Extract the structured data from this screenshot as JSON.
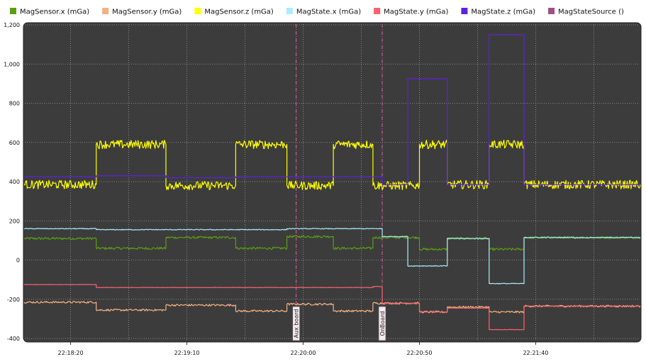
{
  "chart_data": {
    "type": "line",
    "title": "",
    "xlabel": "",
    "ylabel": "",
    "ylim": [
      -400,
      1200
    ],
    "xlim_seconds_of_day": [
      80280,
      80545
    ],
    "x_ticks": [
      {
        "label": "22:18:20",
        "t": 80300
      },
      {
        "label": "22:19:10",
        "t": 80350
      },
      {
        "label": "22:20:00",
        "t": 80400
      },
      {
        "label": "22:20:50",
        "t": 80450
      },
      {
        "label": "22:21:40",
        "t": 80500
      }
    ],
    "y_ticks": [
      {
        "label": "1,200",
        "v": 1200
      },
      {
        "label": "1,000",
        "v": 1000
      },
      {
        "label": "800",
        "v": 800
      },
      {
        "label": "600",
        "v": 600
      },
      {
        "label": "400",
        "v": 400
      },
      {
        "label": "200",
        "v": 200
      },
      {
        "label": "0",
        "v": 0
      },
      {
        "label": "-200",
        "v": -200
      },
      {
        "label": "-400",
        "v": -400
      }
    ],
    "grid": true,
    "legend_placement": "top",
    "annotations": [
      {
        "label": "Aux board",
        "t": 80397
      },
      {
        "label": "OnBoard",
        "t": 80434
      }
    ],
    "series": [
      {
        "name": "MagSensor.x (mGa)",
        "color": "#5a9e12",
        "noise": 6,
        "points": [
          [
            80280,
            110
          ],
          [
            80311,
            110
          ],
          [
            80311,
            60
          ],
          [
            80341,
            60
          ],
          [
            80341,
            115
          ],
          [
            80371,
            115
          ],
          [
            80371,
            60
          ],
          [
            80393,
            60
          ],
          [
            80393,
            120
          ],
          [
            80413,
            120
          ],
          [
            80413,
            60
          ],
          [
            80430,
            60
          ],
          [
            80430,
            115
          ],
          [
            80450,
            115
          ],
          [
            80450,
            55
          ],
          [
            80462,
            55
          ],
          [
            80462,
            110
          ],
          [
            80480,
            110
          ],
          [
            80480,
            55
          ],
          [
            80495,
            55
          ],
          [
            80495,
            115
          ],
          [
            80545,
            115
          ]
        ]
      },
      {
        "name": "MagSensor.y (mGa)",
        "color": "#f4b183",
        "noise": 5,
        "points": [
          [
            80280,
            -215
          ],
          [
            80311,
            -215
          ],
          [
            80311,
            -255
          ],
          [
            80341,
            -255
          ],
          [
            80341,
            -230
          ],
          [
            80371,
            -230
          ],
          [
            80371,
            -260
          ],
          [
            80393,
            -260
          ],
          [
            80393,
            -225
          ],
          [
            80413,
            -225
          ],
          [
            80413,
            -260
          ],
          [
            80430,
            -260
          ],
          [
            80430,
            -220
          ],
          [
            80450,
            -220
          ],
          [
            80450,
            -265
          ],
          [
            80462,
            -265
          ],
          [
            80462,
            -240
          ],
          [
            80480,
            -240
          ],
          [
            80480,
            -265
          ],
          [
            80495,
            -265
          ],
          [
            80495,
            -235
          ],
          [
            80545,
            -235
          ]
        ]
      },
      {
        "name": "MagSensor.z (mGa)",
        "color": "#ffff00",
        "noise": 22,
        "points": [
          [
            80280,
            385
          ],
          [
            80311,
            385
          ],
          [
            80311,
            590
          ],
          [
            80341,
            590
          ],
          [
            80341,
            380
          ],
          [
            80371,
            380
          ],
          [
            80371,
            590
          ],
          [
            80393,
            590
          ],
          [
            80393,
            380
          ],
          [
            80413,
            380
          ],
          [
            80413,
            590
          ],
          [
            80430,
            590
          ],
          [
            80430,
            380
          ],
          [
            80450,
            380
          ],
          [
            80450,
            590
          ],
          [
            80462,
            590
          ],
          [
            80462,
            385
          ],
          [
            80480,
            385
          ],
          [
            80480,
            590
          ],
          [
            80495,
            590
          ],
          [
            80495,
            385
          ],
          [
            80545,
            385
          ]
        ]
      },
      {
        "name": "MagState.x (mGa)",
        "color": "#aaeeff",
        "noise": 2,
        "points": [
          [
            80280,
            160
          ],
          [
            80311,
            160
          ],
          [
            80311,
            155
          ],
          [
            80393,
            155
          ],
          [
            80393,
            160
          ],
          [
            80434,
            160
          ],
          [
            80434,
            120
          ],
          [
            80445,
            120
          ],
          [
            80445,
            -30
          ],
          [
            80462,
            -30
          ],
          [
            80462,
            110
          ],
          [
            80480,
            110
          ],
          [
            80480,
            -120
          ],
          [
            80495,
            -120
          ],
          [
            80495,
            115
          ],
          [
            80545,
            115
          ]
        ]
      },
      {
        "name": "MagState.y (mGa)",
        "color": "#ff6070",
        "noise": 1,
        "points": [
          [
            80280,
            -125
          ],
          [
            80311,
            -125
          ],
          [
            80311,
            -140
          ],
          [
            80430,
            -140
          ],
          [
            80430,
            -135
          ],
          [
            80434,
            -135
          ],
          [
            80434,
            -220
          ],
          [
            80450,
            -220
          ],
          [
            80450,
            -265
          ],
          [
            80462,
            -265
          ],
          [
            80462,
            -245
          ],
          [
            80480,
            -245
          ],
          [
            80480,
            -355
          ],
          [
            80495,
            -355
          ],
          [
            80495,
            -235
          ],
          [
            80545,
            -235
          ]
        ]
      },
      {
        "name": "MagState.z (mGa)",
        "color": "#6020e0",
        "noise": 1,
        "points": [
          [
            80280,
            425
          ],
          [
            80311,
            425
          ],
          [
            80311,
            430
          ],
          [
            80341,
            430
          ],
          [
            80341,
            420
          ],
          [
            80371,
            420
          ],
          [
            80371,
            425
          ],
          [
            80434,
            425
          ],
          [
            80434,
            385
          ],
          [
            80445,
            385
          ],
          [
            80445,
            925
          ],
          [
            80462,
            925
          ],
          [
            80462,
            385
          ],
          [
            80480,
            385
          ],
          [
            80480,
            1150
          ],
          [
            80495,
            1150
          ],
          [
            80495,
            385
          ],
          [
            80545,
            385
          ]
        ]
      },
      {
        "name": "MagStateSource ()",
        "color": "#a05080",
        "noise": 0,
        "points": []
      }
    ]
  }
}
